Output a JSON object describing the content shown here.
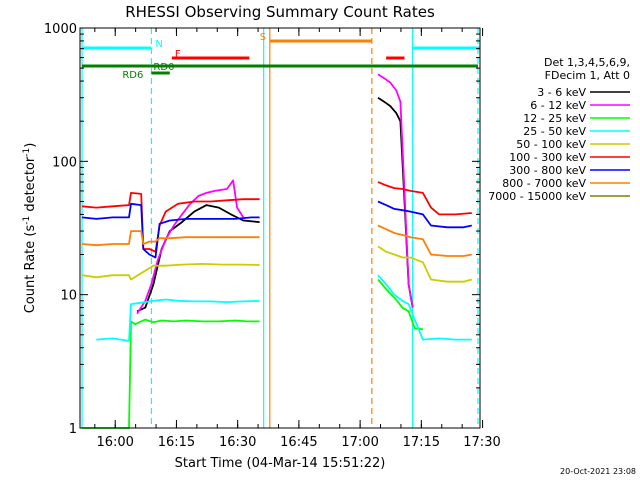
{
  "chart_data": {
    "type": "line",
    "title": "RHESSI Observing Summary Count Rates",
    "xlabel": "Start Time (04-Mar-14 15:51:22)",
    "ylabel_main": "Count Rate (s",
    "ylabel_sup1": "-1",
    "ylabel_mid": " detector",
    "ylabel_sup2": "-1",
    "ylabel_end": ")",
    "yscale": "log",
    "ylim": [
      1,
      1000
    ],
    "xlim_minutes": [
      0,
      98
    ],
    "y_ticks": [
      {
        "v": 1,
        "label": "1"
      },
      {
        "v": 10,
        "label": "10"
      },
      {
        "v": 100,
        "label": "100"
      },
      {
        "v": 1000,
        "label": "1000"
      }
    ],
    "x_ticks": [
      {
        "m": 8.63,
        "label": "16:00"
      },
      {
        "m": 23.63,
        "label": "16:15"
      },
      {
        "m": 38.63,
        "label": "16:30"
      },
      {
        "m": 53.63,
        "label": "16:45"
      },
      {
        "m": 68.63,
        "label": "17:00"
      },
      {
        "m": 83.63,
        "label": "17:15"
      },
      {
        "m": 98.63,
        "label": "17:30"
      }
    ],
    "legend_header": [
      "Det 1,3,4,5,6,9,",
      "FDecim 1, Att 0"
    ],
    "legend": [
      {
        "label": "3 - 6 keV",
        "color": "#000000"
      },
      {
        "label": "6 - 12 keV",
        "color": "#ff00ff"
      },
      {
        "label": "12 - 25 keV",
        "color": "#00ff00"
      },
      {
        "label": "25 - 50 keV",
        "color": "#00ffff"
      },
      {
        "label": "50 - 100 keV",
        "color": "#cccc00"
      },
      {
        "label": "100 - 300 keV",
        "color": "#ff0000"
      },
      {
        "label": "300 - 800 keV",
        "color": "#0000ff"
      },
      {
        "label": "800 - 7000 keV",
        "color": "#ff8000"
      },
      {
        "label": "7000 - 15000 keV",
        "color": "#808000"
      }
    ],
    "series": [
      {
        "name": "3 - 6 keV",
        "color": "#000000",
        "segments": [
          [
            [
              14.0,
              7.5
            ],
            [
              16.0,
              8.0
            ],
            [
              18.0,
              12
            ],
            [
              20.0,
              22
            ],
            [
              22.0,
              30
            ],
            [
              25.0,
              35
            ],
            [
              28.0,
              42
            ],
            [
              31.0,
              47
            ],
            [
              34.0,
              45
            ],
            [
              37.0,
              40
            ],
            [
              40.0,
              36
            ],
            [
              44.0,
              35
            ]
          ],
          [
            [
              73.0,
              300
            ],
            [
              74.5,
              280
            ],
            [
              76.0,
              260
            ],
            [
              77.5,
              230
            ],
            [
              78.5,
              200
            ],
            [
              79.5,
              50
            ],
            [
              80.5,
              12
            ],
            [
              81.5,
              8
            ]
          ]
        ]
      },
      {
        "name": "6 - 12 keV",
        "color": "#ff00ff",
        "segments": [
          [
            [
              14.0,
              7.2
            ],
            [
              16.0,
              9.0
            ],
            [
              17.5,
              12
            ],
            [
              19.0,
              18
            ],
            [
              21.0,
              26
            ],
            [
              23.0,
              33
            ],
            [
              25.0,
              40
            ],
            [
              27.0,
              48
            ],
            [
              29.0,
              55
            ],
            [
              31.0,
              58
            ],
            [
              33.0,
              60
            ],
            [
              36.0,
              62
            ],
            [
              37.5,
              72
            ],
            [
              38.5,
              45
            ],
            [
              40.0,
              38
            ]
          ],
          [
            [
              73.0,
              450
            ],
            [
              74.5,
              420
            ],
            [
              76.0,
              390
            ],
            [
              77.5,
              340
            ],
            [
              78.5,
              280
            ],
            [
              79.5,
              60
            ],
            [
              80.5,
              12
            ],
            [
              81.5,
              8
            ]
          ]
        ]
      },
      {
        "name": "12 - 25 keV",
        "color": "#00ff00",
        "segments": [
          [
            [
              0.5,
              1
            ],
            [
              12.0,
              1
            ],
            [
              12.5,
              6.3
            ],
            [
              13.5,
              6.0
            ],
            [
              16.0,
              6.5
            ],
            [
              18.0,
              6.2
            ],
            [
              20.0,
              6.4
            ],
            [
              23.0,
              6.3
            ],
            [
              26.0,
              6.4
            ],
            [
              30.0,
              6.3
            ],
            [
              34.0,
              6.3
            ],
            [
              38.0,
              6.4
            ],
            [
              41.0,
              6.3
            ],
            [
              44.0,
              6.3
            ]
          ],
          [
            [
              73.0,
              13
            ],
            [
              75.0,
              11
            ],
            [
              77.0,
              9.5
            ],
            [
              79.0,
              8
            ],
            [
              80.5,
              7.5
            ],
            [
              82.0,
              5.6
            ],
            [
              84.0,
              5.5
            ]
          ]
        ]
      },
      {
        "name": "25 - 50 keV",
        "color": "#00ffff",
        "segments": [
          [
            [
              4.0,
              4.6
            ],
            [
              8.0,
              4.7
            ],
            [
              12.0,
              4.5
            ],
            [
              12.5,
              8.5
            ],
            [
              15.0,
              8.7
            ],
            [
              18.0,
              9.0
            ],
            [
              21.0,
              9.2
            ],
            [
              24.0,
              9.0
            ],
            [
              28.0,
              8.9
            ],
            [
              32.0,
              8.9
            ],
            [
              36.0,
              8.8
            ],
            [
              40.0,
              8.9
            ],
            [
              44.0,
              9.0
            ]
          ],
          [
            [
              73.0,
              14
            ],
            [
              75.0,
              12
            ],
            [
              77.0,
              10
            ],
            [
              79.0,
              9
            ],
            [
              80.5,
              8.5
            ],
            [
              82.0,
              6.5
            ],
            [
              84.0,
              4.6
            ],
            [
              88.0,
              4.7
            ],
            [
              92.0,
              4.6
            ],
            [
              96.0,
              4.6
            ]
          ]
        ]
      },
      {
        "name": "50 - 100 keV",
        "color": "#cccc00",
        "segments": [
          [
            [
              0.5,
              14
            ],
            [
              4.0,
              13.5
            ],
            [
              8.0,
              14
            ],
            [
              12.0,
              14
            ],
            [
              12.5,
              13
            ],
            [
              15.0,
              14.5
            ],
            [
              18.0,
              16.5
            ],
            [
              21.0,
              16.5
            ],
            [
              25.0,
              16.8
            ],
            [
              30.0,
              17
            ],
            [
              35.0,
              16.8
            ],
            [
              40.0,
              16.8
            ],
            [
              44.0,
              16.7
            ]
          ],
          [
            [
              73.0,
              23
            ],
            [
              75.0,
              21
            ],
            [
              77.0,
              20
            ],
            [
              79.0,
              19
            ],
            [
              81.0,
              19
            ],
            [
              84.0,
              17.5
            ],
            [
              86.0,
              13
            ],
            [
              90.0,
              12.5
            ],
            [
              94.0,
              12.5
            ],
            [
              96.0,
              13
            ]
          ]
        ]
      },
      {
        "name": "100 - 300 keV",
        "color": "#ff0000",
        "segments": [
          [
            [
              0.5,
              46
            ],
            [
              4.0,
              45
            ],
            [
              8.0,
              46
            ],
            [
              12.0,
              47
            ],
            [
              12.5,
              58
            ],
            [
              15.0,
              57
            ],
            [
              15.5,
              22
            ],
            [
              17.0,
              22
            ],
            [
              18.5,
              21
            ],
            [
              19.5,
              33
            ],
            [
              21.0,
              42
            ],
            [
              24.0,
              48
            ],
            [
              28.0,
              50
            ],
            [
              32.0,
              50
            ],
            [
              36.0,
              51
            ],
            [
              40.0,
              52
            ],
            [
              44.0,
              52
            ]
          ],
          [
            [
              73.0,
              70
            ],
            [
              75.0,
              66
            ],
            [
              77.0,
              63
            ],
            [
              79.0,
              62
            ],
            [
              81.0,
              60
            ],
            [
              84.0,
              58
            ],
            [
              86.0,
              45
            ],
            [
              88.0,
              40
            ],
            [
              92.0,
              40
            ],
            [
              96.0,
              41
            ]
          ]
        ]
      },
      {
        "name": "300 - 800 keV",
        "color": "#0000ff",
        "segments": [
          [
            [
              0.5,
              38
            ],
            [
              4.0,
              37
            ],
            [
              8.0,
              38
            ],
            [
              12.0,
              38
            ],
            [
              12.5,
              48
            ],
            [
              15.0,
              47
            ],
            [
              15.5,
              22
            ],
            [
              17.0,
              20
            ],
            [
              18.5,
              19
            ],
            [
              19.5,
              34
            ],
            [
              22.0,
              36
            ],
            [
              26.0,
              37
            ],
            [
              30.0,
              37
            ],
            [
              34.0,
              37
            ],
            [
              38.0,
              37
            ],
            [
              42.0,
              38
            ],
            [
              44.0,
              38
            ]
          ],
          [
            [
              73.0,
              50
            ],
            [
              75.0,
              47
            ],
            [
              77.0,
              44
            ],
            [
              79.0,
              43
            ],
            [
              81.0,
              42
            ],
            [
              84.0,
              40
            ],
            [
              86.0,
              33
            ],
            [
              90.0,
              32
            ],
            [
              94.0,
              32
            ],
            [
              96.0,
              33
            ]
          ]
        ]
      },
      {
        "name": "800 - 7000 keV",
        "color": "#ff8000",
        "segments": [
          [
            [
              0.5,
              24
            ],
            [
              4.0,
              23.5
            ],
            [
              8.0,
              24
            ],
            [
              12.0,
              24
            ],
            [
              12.5,
              30
            ],
            [
              15.0,
              30
            ],
            [
              15.5,
              24
            ],
            [
              17.0,
              25
            ],
            [
              18.5,
              25
            ],
            [
              19.5,
              26.5
            ],
            [
              22.0,
              26.5
            ],
            [
              26.0,
              27
            ],
            [
              30.0,
              27
            ],
            [
              34.0,
              27
            ],
            [
              38.0,
              27
            ],
            [
              42.0,
              27
            ],
            [
              44.0,
              27
            ]
          ],
          [
            [
              73.0,
              33
            ],
            [
              75.0,
              31
            ],
            [
              77.0,
              29
            ],
            [
              79.0,
              28
            ],
            [
              81.0,
              27
            ],
            [
              84.0,
              26
            ],
            [
              86.0,
              20
            ],
            [
              90.0,
              19.5
            ],
            [
              94.0,
              19.5
            ],
            [
              96.0,
              20
            ]
          ]
        ]
      }
    ],
    "status_bars": [
      {
        "label": "N",
        "color": "#00ffff",
        "row": "n",
        "segments": [
          [
            0.5,
            17.5
          ],
          [
            81.5,
            98.0
          ]
        ]
      },
      {
        "label": "S",
        "color": "#ff8000",
        "row": "s",
        "segments": [
          [
            46.5,
            71.5
          ]
        ]
      },
      {
        "label": "F",
        "color": "#ff0000",
        "row": "f",
        "segments": [
          [
            22.5,
            41.5
          ],
          [
            75.0,
            79.5
          ]
        ]
      },
      {
        "label": "RD0",
        "color": "#008000",
        "row": "rd0",
        "segments": [
          [
            17.5,
            22.0
          ]
        ]
      },
      {
        "label": "RD6",
        "color": "#008000",
        "row": "rd6",
        "segments": [
          [
            0.5,
            97.5
          ]
        ]
      }
    ],
    "vlines": [
      {
        "m": 0.5,
        "color": "#00ffff",
        "style": "solid"
      },
      {
        "m": 17.5,
        "color": "#00ffff",
        "style": "dashed"
      },
      {
        "m": 45.0,
        "color": "#00ffff",
        "style": "solid"
      },
      {
        "m": 46.5,
        "color": "#ff8000",
        "style": "solid"
      },
      {
        "m": 71.5,
        "color": "#ff8000",
        "style": "dashed"
      },
      {
        "m": 81.5,
        "color": "#00ffff",
        "style": "solid"
      },
      {
        "m": 97.5,
        "color": "#00ffff",
        "style": "dashed"
      }
    ],
    "grid": false
  },
  "footer_date": "20-Oct-2021 23:08"
}
